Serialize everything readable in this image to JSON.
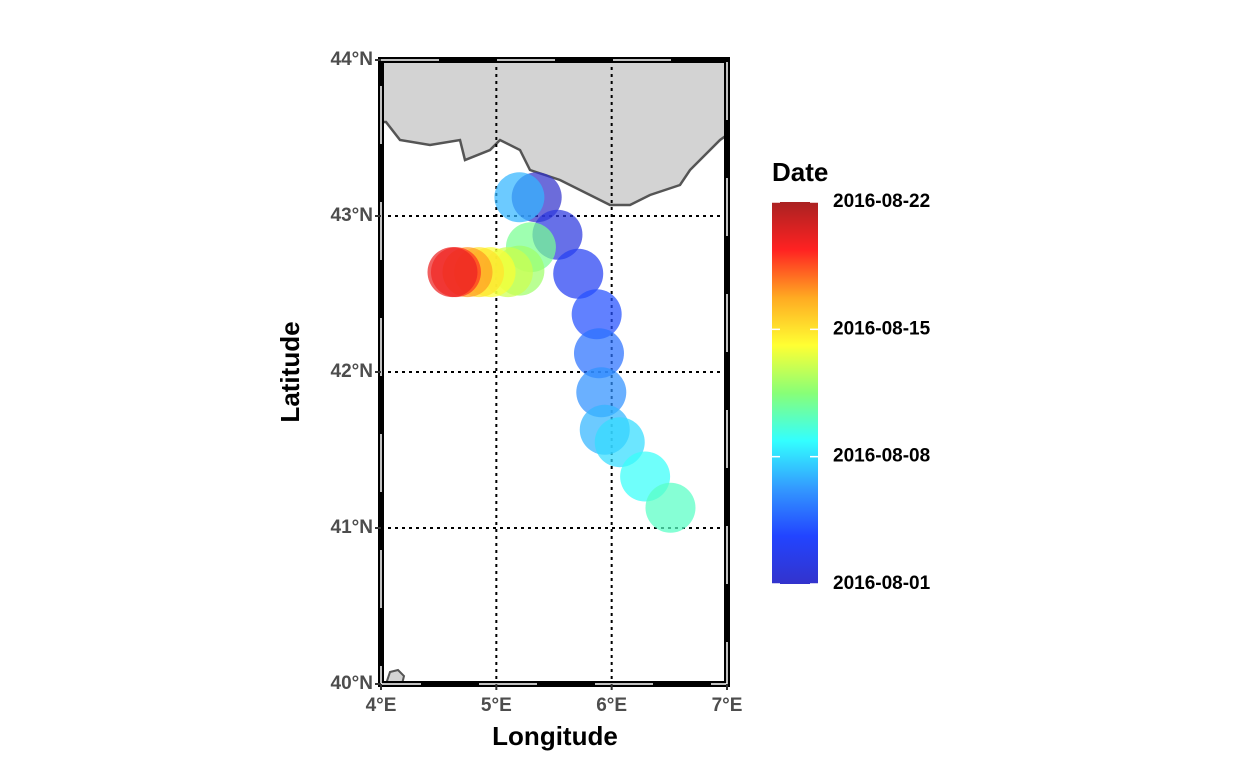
{
  "chart_data": {
    "type": "map",
    "xlabel": "Longitude",
    "ylabel": "Latitude",
    "legend_title": "Date",
    "xlim": [
      4,
      7
    ],
    "ylim": [
      40,
      44
    ],
    "xticks": [
      {
        "value": 4,
        "label": "4°E"
      },
      {
        "value": 5,
        "label": "5°E"
      },
      {
        "value": 6,
        "label": "6°E"
      },
      {
        "value": 7,
        "label": "7°E"
      }
    ],
    "yticks": [
      {
        "value": 40,
        "label": "40°N"
      },
      {
        "value": 41,
        "label": "41°N"
      },
      {
        "value": 42,
        "label": "42°N"
      },
      {
        "value": 43,
        "label": "43°N"
      },
      {
        "value": 44,
        "label": "44°N"
      }
    ],
    "grid": true,
    "x": [
      5.35,
      5.53,
      5.71,
      5.87,
      5.89,
      5.91,
      5.2,
      5.94,
      6.07,
      6.29,
      6.51,
      5.3,
      5.2,
      5.1,
      4.95,
      4.85,
      4.75,
      4.65,
      4.62
    ],
    "values": [
      43.12,
      42.88,
      42.63,
      42.37,
      42.12,
      41.87,
      43.12,
      41.63,
      41.55,
      41.33,
      41.13,
      42.8,
      42.65,
      42.64,
      42.64,
      42.64,
      42.64,
      42.64,
      42.64
    ],
    "dates": [
      "2016-08-01",
      "2016-08-02",
      "2016-08-03",
      "2016-08-04",
      "2016-08-05",
      "2016-08-06",
      "2016-08-07",
      "2016-08-07",
      "2016-08-08",
      "2016-08-09",
      "2016-08-10",
      "2016-08-11",
      "2016-08-12",
      "2016-08-13",
      "2016-08-14",
      "2016-08-15",
      "2016-08-17",
      "2016-08-19",
      "2016-08-20"
    ],
    "color_lim": [
      "2016-08-01",
      "2016-08-22"
    ],
    "color_ticks": [
      "2016-08-01",
      "2016-08-08",
      "2016-08-15",
      "2016-08-22"
    ],
    "colormap": [
      "#3333cc",
      "#2244ff",
      "#3399ff",
      "#33ffff",
      "#88ff77",
      "#ffff33",
      "#ffaa22",
      "#ff2222",
      "#aa2222"
    ]
  }
}
